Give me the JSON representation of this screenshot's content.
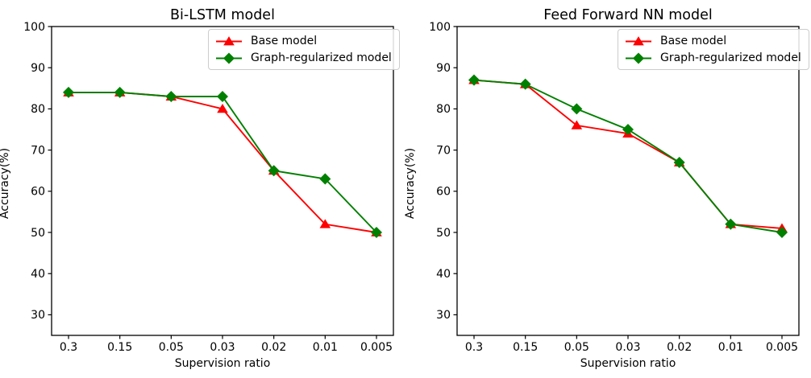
{
  "chart_data": [
    {
      "type": "line",
      "title": "Bi-LSTM model",
      "xlabel": "Supervision ratio",
      "ylabel": "Accuracy(%)",
      "categories": [
        "0.3",
        "0.15",
        "0.05",
        "0.03",
        "0.02",
        "0.01",
        "0.005"
      ],
      "yticks": [
        30,
        40,
        50,
        60,
        70,
        80,
        90,
        100
      ],
      "ylim": [
        25,
        100
      ],
      "grid": false,
      "legend_position": "upper right",
      "series": [
        {
          "name": "Base model",
          "color": "#ff0000",
          "marker": "triangle",
          "values": [
            84,
            84,
            83,
            80,
            65,
            52,
            50
          ]
        },
        {
          "name": "Graph-regularized model",
          "color": "#008000",
          "marker": "diamond",
          "values": [
            84,
            84,
            83,
            83,
            65,
            63,
            50
          ]
        }
      ]
    },
    {
      "type": "line",
      "title": "Feed Forward NN model",
      "xlabel": "Supervision ratio",
      "ylabel": "Accuracy(%)",
      "categories": [
        "0.3",
        "0.15",
        "0.05",
        "0.03",
        "0.02",
        "0.01",
        "0.005"
      ],
      "yticks": [
        30,
        40,
        50,
        60,
        70,
        80,
        90,
        100
      ],
      "ylim": [
        25,
        100
      ],
      "grid": false,
      "legend_position": "upper right",
      "series": [
        {
          "name": "Base model",
          "color": "#ff0000",
          "marker": "triangle",
          "values": [
            87,
            86,
            76,
            74,
            67,
            52,
            51
          ]
        },
        {
          "name": "Graph-regularized model",
          "color": "#008000",
          "marker": "diamond",
          "values": [
            87,
            86,
            80,
            75,
            67,
            52,
            50
          ]
        }
      ]
    }
  ]
}
